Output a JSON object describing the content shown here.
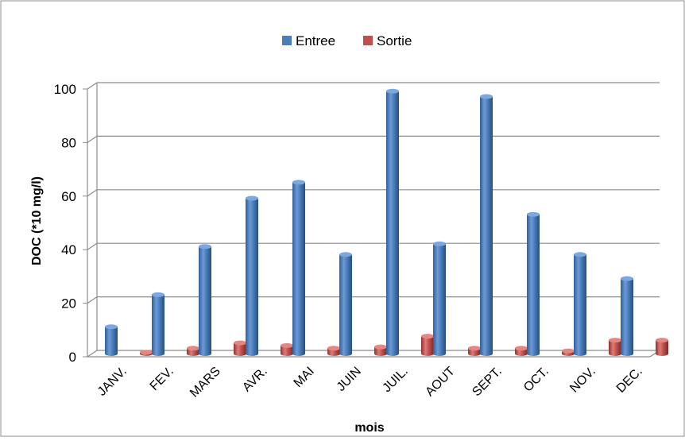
{
  "chart_data": {
    "type": "bar",
    "categories": [
      "JANV.",
      "FEV.",
      "MARS",
      "AVR.",
      "MAI",
      "JUIN",
      "JUIL.",
      "AOUT",
      "SEPT.",
      "OCT.",
      "NOV.",
      "DEC."
    ],
    "series": [
      {
        "name": "Entree",
        "color": "#4A7EBB",
        "values": [
          10,
          22,
          40,
          58,
          64,
          37,
          98,
          41,
          96,
          52,
          37,
          28
        ]
      },
      {
        "name": "Sortie",
        "color": "#C0504D",
        "values": [
          0.5,
          2,
          4,
          3,
          2,
          2.5,
          6.5,
          2,
          2,
          1,
          5,
          5
        ]
      }
    ],
    "title": "",
    "xlabel": "mois",
    "ylabel": "DOC (*10 mg/l)",
    "ylim": [
      0,
      100
    ],
    "yticks": [
      "0",
      "20",
      "40",
      "60",
      "80",
      "100"
    ],
    "grid": true,
    "legend": "top-center",
    "style": "3d-cylinder"
  }
}
